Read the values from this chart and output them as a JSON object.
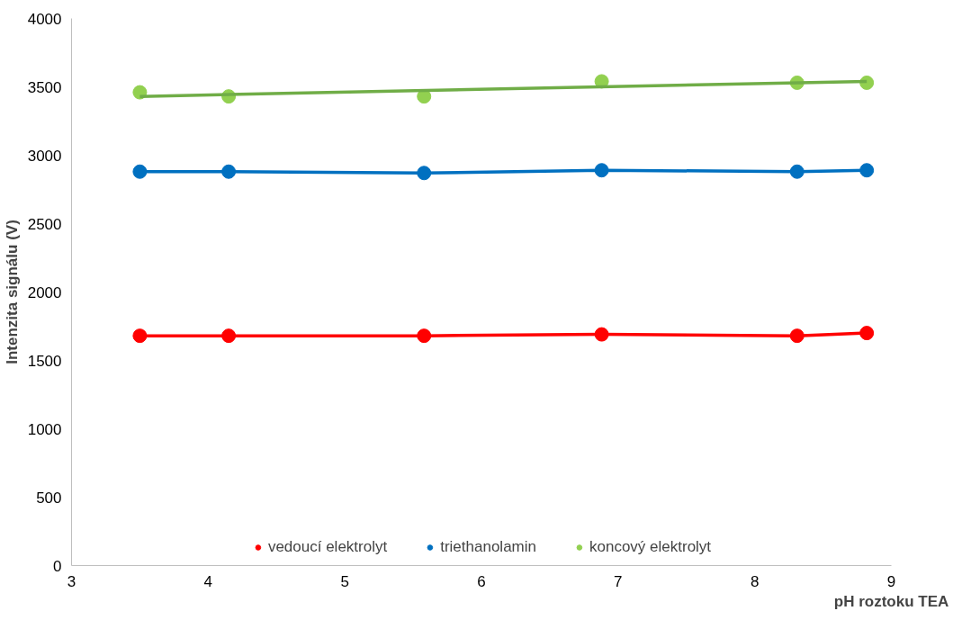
{
  "chart_data": {
    "type": "line",
    "xlabel": "pH roztoku TEA",
    "ylabel": "Intenzita signálu (V)",
    "xlim": [
      3,
      9
    ],
    "xticks": [
      3,
      4,
      5,
      6,
      7,
      8,
      9
    ],
    "ylim": [
      0,
      4000
    ],
    "yticks": [
      0,
      500,
      1000,
      1500,
      2000,
      2500,
      3000,
      3500,
      4000
    ],
    "x": [
      3.5,
      4.15,
      5.58,
      6.88,
      8.31,
      8.82
    ],
    "grid": false,
    "legend": "bottom",
    "marker": "circle",
    "line_style": "solid",
    "series": [
      {
        "name": "vedoucí elektrolyt",
        "color": "#ff0000",
        "values": [
          1680,
          1680,
          1680,
          1690,
          1680,
          1700
        ]
      },
      {
        "name": "triethanolamin",
        "color": "#0070c0",
        "values": [
          2880,
          2880,
          2870,
          2890,
          2880,
          2890
        ]
      },
      {
        "name": "koncový elektrolyt",
        "type": "scatter",
        "color": "#92d050",
        "values": [
          3460,
          3430,
          3430,
          3540,
          3530,
          3530
        ]
      },
      {
        "type": "line",
        "marker": "none",
        "color": "#70ad47",
        "x": [
          3.5,
          8.82
        ],
        "values": [
          3430,
          3540
        ]
      }
    ]
  }
}
